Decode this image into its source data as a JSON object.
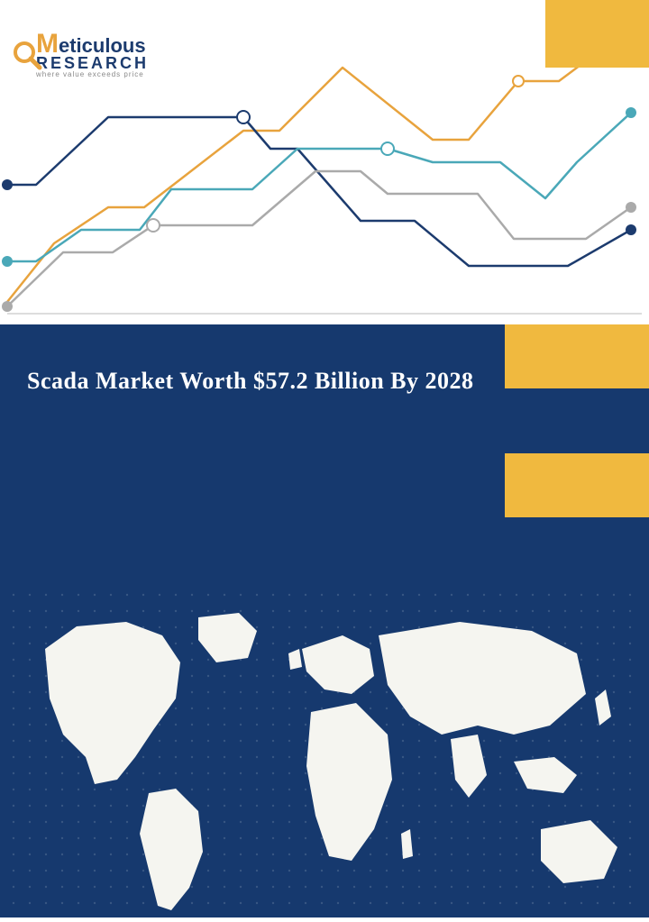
{
  "logo": {
    "brand_part1": "M",
    "brand_part2": "eticulous",
    "brand_line2": "RESEARCH",
    "tagline": "where value exceeds price",
    "color_navy": "#1c3b6e",
    "color_orange": "#e8a33d",
    "color_gray": "#888888"
  },
  "top_right_block": {
    "color": "#f0b93f"
  },
  "chart": {
    "background": "#ffffff",
    "gridline_color": "#cccccc",
    "gridline_width": 1,
    "xlim": [
      0,
      720
    ],
    "ylim": [
      0,
      360
    ],
    "lines": [
      {
        "name": "orange",
        "color": "#e8a33d",
        "width": 2.5,
        "points": [
          [
            8,
            335
          ],
          [
            60,
            270
          ],
          [
            120,
            230
          ],
          [
            160,
            230
          ],
          [
            270,
            145
          ],
          [
            310,
            145
          ],
          [
            380,
            75
          ],
          [
            480,
            155
          ],
          [
            520,
            155
          ],
          [
            575,
            90
          ],
          [
            620,
            90
          ],
          [
            700,
            30
          ]
        ],
        "marker": {
          "x": 575,
          "y": 90,
          "r": 6,
          "fill": "#ffffff",
          "stroke": "#e8a33d"
        }
      },
      {
        "name": "navy",
        "color": "#1c3b6e",
        "width": 2.5,
        "points": [
          [
            8,
            205
          ],
          [
            40,
            205
          ],
          [
            120,
            130
          ],
          [
            270,
            130
          ],
          [
            300,
            165
          ],
          [
            330,
            165
          ],
          [
            400,
            245
          ],
          [
            460,
            245
          ],
          [
            520,
            295
          ],
          [
            630,
            295
          ],
          [
            700,
            255
          ]
        ],
        "start_marker": {
          "x": 8,
          "y": 205,
          "r": 6,
          "fill": "#1c3b6e"
        },
        "end_marker": {
          "x": 700,
          "y": 255,
          "r": 6,
          "fill": "#1c3b6e"
        },
        "marker": {
          "x": 270,
          "y": 130,
          "r": 7,
          "fill": "#ffffff",
          "stroke": "#1c3b6e"
        }
      },
      {
        "name": "teal",
        "color": "#4aa8b8",
        "width": 2.5,
        "points": [
          [
            8,
            290
          ],
          [
            40,
            290
          ],
          [
            90,
            255
          ],
          [
            155,
            255
          ],
          [
            190,
            210
          ],
          [
            280,
            210
          ],
          [
            330,
            165
          ],
          [
            430,
            165
          ],
          [
            480,
            180
          ],
          [
            555,
            180
          ],
          [
            605,
            220
          ],
          [
            640,
            180
          ],
          [
            700,
            125
          ]
        ],
        "start_marker": {
          "x": 8,
          "y": 290,
          "r": 6,
          "fill": "#4aa8b8"
        },
        "end_marker": {
          "x": 700,
          "y": 125,
          "r": 6,
          "fill": "#4aa8b8"
        },
        "marker": {
          "x": 430,
          "y": 165,
          "r": 7,
          "fill": "#ffffff",
          "stroke": "#4aa8b8"
        }
      },
      {
        "name": "gray",
        "color": "#aaaaaa",
        "width": 2.5,
        "points": [
          [
            8,
            340
          ],
          [
            70,
            280
          ],
          [
            125,
            280
          ],
          [
            170,
            250
          ],
          [
            280,
            250
          ],
          [
            350,
            190
          ],
          [
            400,
            190
          ],
          [
            430,
            215
          ],
          [
            530,
            215
          ],
          [
            570,
            265
          ],
          [
            650,
            265
          ],
          [
            700,
            230
          ]
        ],
        "start_marker": {
          "x": 8,
          "y": 340,
          "r": 6,
          "fill": "#aaaaaa"
        },
        "end_marker": {
          "x": 700,
          "y": 230,
          "r": 6,
          "fill": "#aaaaaa"
        },
        "marker": {
          "x": 170,
          "y": 250,
          "r": 7,
          "fill": "#ffffff",
          "stroke": "#aaaaaa"
        }
      }
    ],
    "baseline_y": 348,
    "baseline_color": "#bbbbbb"
  },
  "mid": {
    "left_bg": "#16396e",
    "title": "Scada Market Worth $57.2 Billion By 2028",
    "title_color": "#ffffff",
    "right_cells": [
      {
        "bg": "#f0b93f"
      },
      {
        "bg": "#16396e"
      },
      {
        "bg": "#f0b93f"
      },
      {
        "bg": "#16396e"
      }
    ],
    "cell_border": "#ffffff"
  },
  "map": {
    "bg": "#16396e",
    "land_color": "#f5f5f0",
    "dot_grid_color": "rgba(255,255,255,0.15)"
  }
}
